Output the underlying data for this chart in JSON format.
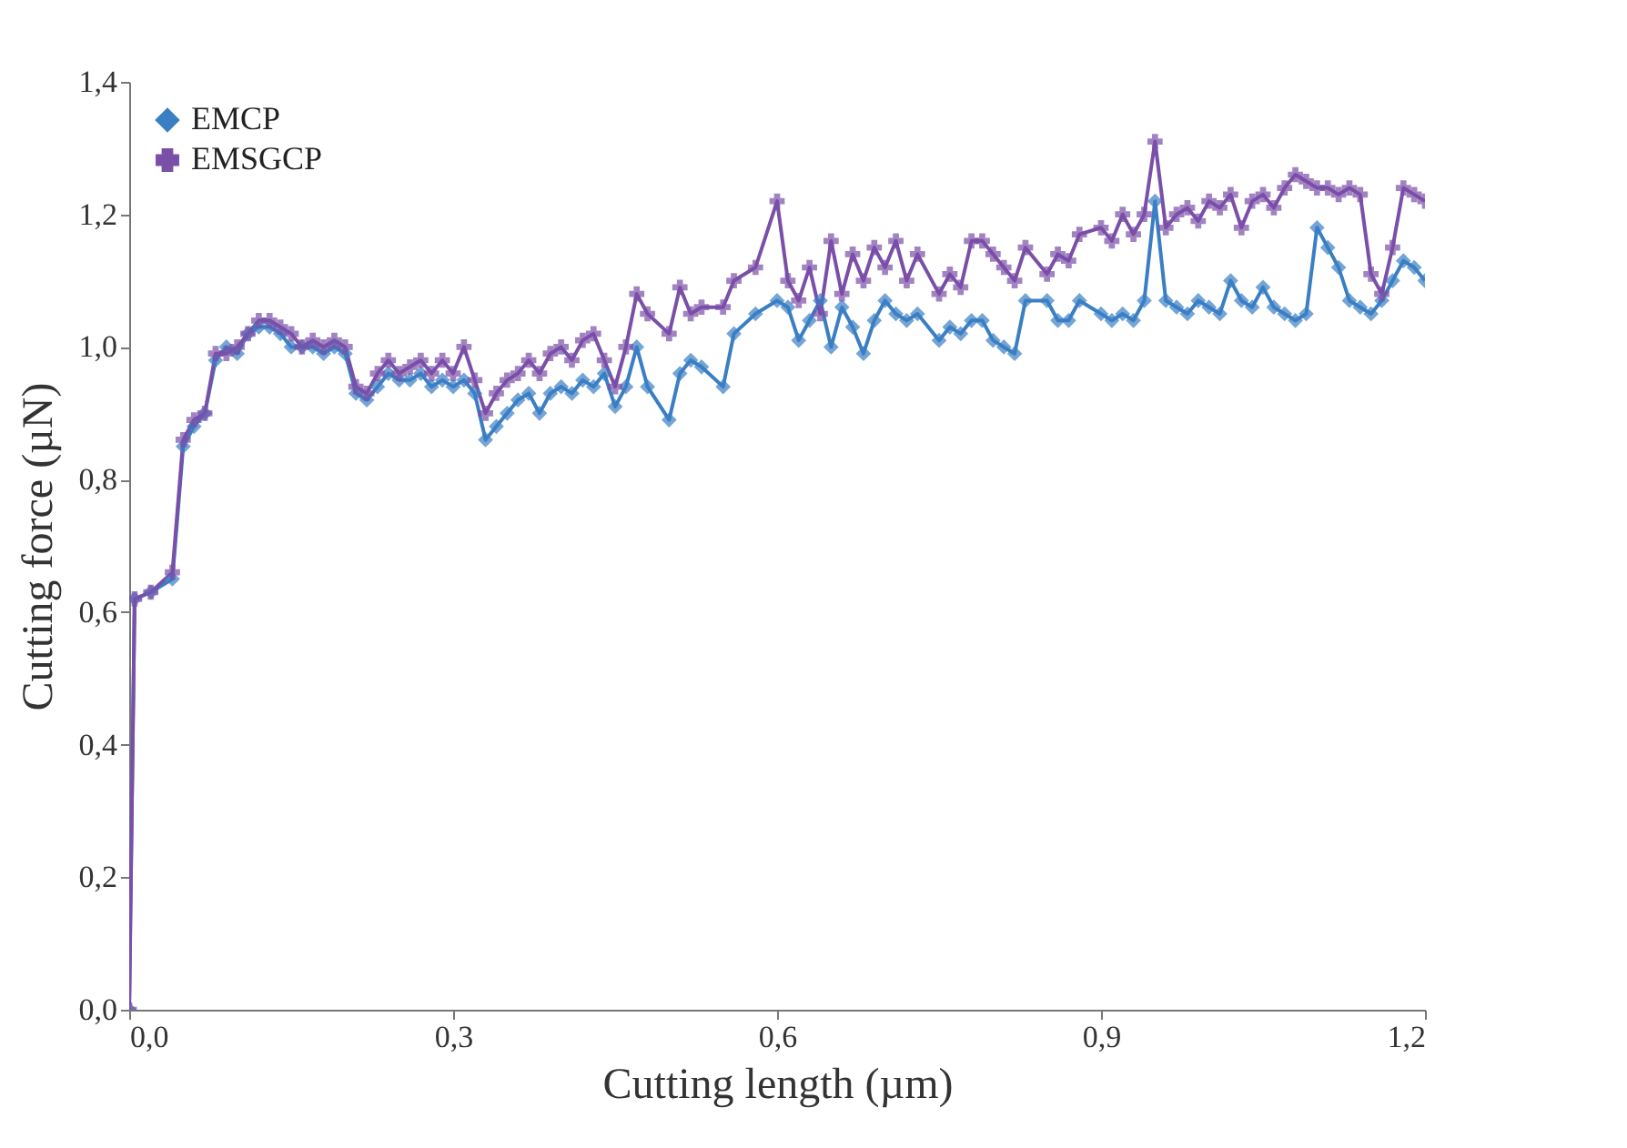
{
  "chart_data": {
    "type": "line",
    "xlabel": "Cutting length (µm)",
    "ylabel": "Cutting force (µN)",
    "x": [
      0,
      0.005,
      0.02,
      0.04,
      0.05,
      0.06,
      0.07,
      0.08,
      0.09,
      0.1,
      0.11,
      0.12,
      0.13,
      0.14,
      0.15,
      0.16,
      0.17,
      0.18,
      0.19,
      0.2,
      0.21,
      0.22,
      0.23,
      0.24,
      0.25,
      0.26,
      0.27,
      0.28,
      0.29,
      0.3,
      0.31,
      0.32,
      0.33,
      0.34,
      0.35,
      0.36,
      0.37,
      0.38,
      0.39,
      0.4,
      0.41,
      0.42,
      0.43,
      0.44,
      0.45,
      0.46,
      0.47,
      0.48,
      0.5,
      0.51,
      0.52,
      0.53,
      0.55,
      0.56,
      0.58,
      0.6,
      0.61,
      0.62,
      0.63,
      0.64,
      0.65,
      0.66,
      0.67,
      0.68,
      0.69,
      0.7,
      0.71,
      0.72,
      0.73,
      0.75,
      0.76,
      0.77,
      0.78,
      0.79,
      0.8,
      0.81,
      0.82,
      0.83,
      0.85,
      0.86,
      0.87,
      0.88,
      0.9,
      0.91,
      0.92,
      0.93,
      0.94,
      0.95,
      0.96,
      0.97,
      0.98,
      0.99,
      1.0,
      1.01,
      1.02,
      1.03,
      1.04,
      1.05,
      1.06,
      1.07,
      1.08,
      1.09,
      1.1,
      1.11,
      1.12,
      1.13,
      1.14,
      1.15,
      1.16,
      1.17,
      1.18,
      1.19,
      1.2
    ],
    "series": [
      {
        "name": "EMCP",
        "color": "#3a7fc4",
        "marker": "diamond",
        "values": [
          0,
          0.62,
          0.63,
          0.65,
          0.85,
          0.88,
          0.9,
          0.98,
          1.0,
          0.99,
          1.02,
          1.03,
          1.03,
          1.02,
          1.0,
          1.0,
          1.0,
          0.99,
          1.0,
          0.99,
          0.93,
          0.92,
          0.94,
          0.96,
          0.95,
          0.95,
          0.96,
          0.94,
          0.95,
          0.94,
          0.95,
          0.93,
          0.86,
          0.88,
          0.9,
          0.92,
          0.93,
          0.9,
          0.93,
          0.94,
          0.93,
          0.95,
          0.94,
          0.96,
          0.91,
          0.94,
          1.0,
          0.94,
          0.89,
          0.96,
          0.98,
          0.97,
          0.94,
          1.02,
          1.05,
          1.07,
          1.06,
          1.01,
          1.04,
          1.07,
          1.0,
          1.06,
          1.03,
          0.99,
          1.04,
          1.07,
          1.05,
          1.04,
          1.05,
          1.01,
          1.03,
          1.02,
          1.04,
          1.04,
          1.01,
          1.0,
          0.99,
          1.07,
          1.07,
          1.04,
          1.04,
          1.07,
          1.05,
          1.04,
          1.05,
          1.04,
          1.07,
          1.22,
          1.07,
          1.06,
          1.05,
          1.07,
          1.06,
          1.05,
          1.1,
          1.07,
          1.06,
          1.09,
          1.06,
          1.05,
          1.04,
          1.05,
          1.18,
          1.15,
          1.12,
          1.07,
          1.06,
          1.05,
          1.07,
          1.1,
          1.13,
          1.12,
          1.1
        ]
      },
      {
        "name": "EMSGCP",
        "color": "#7a4fa8",
        "marker": "cross",
        "values": [
          0,
          0.62,
          0.63,
          0.66,
          0.86,
          0.89,
          0.9,
          0.99,
          0.99,
          1.0,
          1.02,
          1.04,
          1.04,
          1.03,
          1.02,
          1.0,
          1.01,
          1.0,
          1.01,
          1.0,
          0.94,
          0.93,
          0.96,
          0.98,
          0.96,
          0.97,
          0.98,
          0.96,
          0.98,
          0.96,
          1.0,
          0.95,
          0.9,
          0.93,
          0.95,
          0.96,
          0.98,
          0.96,
          0.99,
          1.0,
          0.98,
          1.01,
          1.02,
          0.98,
          0.94,
          1.0,
          1.08,
          1.05,
          1.02,
          1.09,
          1.05,
          1.06,
          1.06,
          1.1,
          1.12,
          1.22,
          1.1,
          1.07,
          1.12,
          1.05,
          1.16,
          1.08,
          1.14,
          1.1,
          1.15,
          1.12,
          1.16,
          1.1,
          1.14,
          1.08,
          1.11,
          1.09,
          1.16,
          1.16,
          1.14,
          1.12,
          1.1,
          1.15,
          1.11,
          1.14,
          1.13,
          1.17,
          1.18,
          1.16,
          1.2,
          1.17,
          1.2,
          1.31,
          1.18,
          1.2,
          1.21,
          1.19,
          1.22,
          1.21,
          1.23,
          1.18,
          1.22,
          1.23,
          1.21,
          1.24,
          1.26,
          1.25,
          1.24,
          1.24,
          1.23,
          1.24,
          1.23,
          1.11,
          1.08,
          1.15,
          1.24,
          1.23,
          1.22
        ]
      }
    ],
    "xlim": [
      0,
      1.2
    ],
    "xticks": [
      {
        "value": 0,
        "label": "0,0"
      },
      {
        "value": 0.3,
        "label": "0,3"
      },
      {
        "value": 0.6,
        "label": "0,6"
      },
      {
        "value": 0.9,
        "label": "0,9"
      },
      {
        "value": 1.2,
        "label": "1,2"
      }
    ],
    "ylim": [
      0,
      1.4
    ],
    "yticks": [
      {
        "value": 0,
        "label": "0,0"
      },
      {
        "value": 0.2,
        "label": "0,2"
      },
      {
        "value": 0.4,
        "label": "0,4"
      },
      {
        "value": 0.6,
        "label": "0,6"
      },
      {
        "value": 0.8,
        "label": "0,8"
      },
      {
        "value": 1.0,
        "label": "1,0"
      },
      {
        "value": 1.2,
        "label": "1,2"
      },
      {
        "value": 1.4,
        "label": "1,4"
      }
    ],
    "grid": false,
    "legend": "top left"
  }
}
